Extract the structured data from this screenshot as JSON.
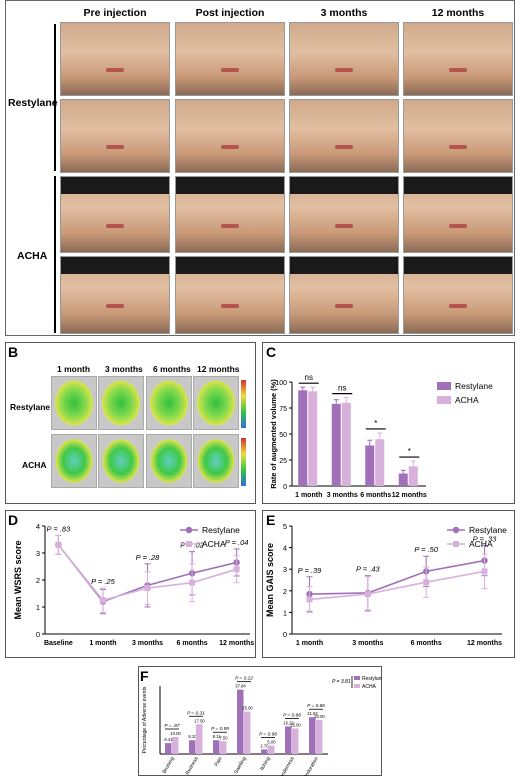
{
  "panelA": {
    "letter": "A",
    "columns": [
      "Pre injection",
      "Post injection",
      "3 months",
      "12 months"
    ],
    "rows": [
      "Restylane",
      "ACHA"
    ]
  },
  "panelB": {
    "letter": "B",
    "columns": [
      "1 month",
      "3 months",
      "6 months",
      "12 months"
    ],
    "rows": [
      "Restylane",
      "ACHA"
    ]
  },
  "panelC": {
    "letter": "C",
    "ylabel": "Rate of augmented volume (%)",
    "sig": [
      "ns",
      "ns",
      "*",
      "*"
    ]
  },
  "panelD": {
    "letter": "D",
    "ylabel": "Mean WSRS score"
  },
  "panelE": {
    "letter": "E",
    "ylabel": "Mean GAIS score"
  },
  "panelF": {
    "letter": "F",
    "ylabel": "Percentage of Adverse events",
    "extra_p": "P = 3.81"
  },
  "colors": {
    "restylane": "#a070b8",
    "acha": "#d8b0dc"
  },
  "chart_data": [
    {
      "id": "C",
      "type": "bar",
      "categories": [
        "1 month",
        "3 months",
        "6 months",
        "12 months"
      ],
      "series": [
        {
          "name": "Restylane",
          "values": [
            92,
            79,
            39,
            12
          ],
          "errors": [
            3,
            4,
            5,
            3
          ]
        },
        {
          "name": "ACHA",
          "values": [
            91,
            80,
            45,
            19
          ],
          "errors": [
            4,
            5,
            6,
            5
          ]
        }
      ],
      "ylim": [
        0,
        100
      ],
      "yticks": [
        0,
        25,
        50,
        75,
        100
      ],
      "ylabel": "Rate of augmented volume (%)",
      "legend": "right"
    },
    {
      "id": "D",
      "type": "line",
      "categories": [
        "Baseline",
        "1 month",
        "3 months",
        "6 months",
        "12 months"
      ],
      "series": [
        {
          "name": "Restylane",
          "values": [
            3.3,
            1.2,
            1.8,
            2.25,
            2.65
          ],
          "errors": [
            0.35,
            0.45,
            0.8,
            0.8,
            0.5
          ]
        },
        {
          "name": "ACHA",
          "values": [
            3.3,
            1.25,
            1.7,
            1.9,
            2.4
          ],
          "errors": [
            0.35,
            0.45,
            0.6,
            0.7,
            0.5
          ]
        }
      ],
      "pvalues": [
        "P = .83",
        "P = .25",
        "P = .28",
        "P = .02",
        "P = .04"
      ],
      "ylim": [
        0,
        4
      ],
      "yticks": [
        0,
        1,
        2,
        3,
        4
      ],
      "ylabel": "Mean WSRS score",
      "legend": "top-right"
    },
    {
      "id": "E",
      "type": "line",
      "categories": [
        "1 month",
        "3 months",
        "6 months",
        "12 months"
      ],
      "series": [
        {
          "name": "Restylane",
          "values": [
            1.85,
            1.9,
            2.9,
            3.4
          ],
          "errors": [
            0.8,
            0.8,
            0.7,
            0.7
          ]
        },
        {
          "name": "ACHA",
          "values": [
            1.6,
            1.85,
            2.4,
            2.9
          ],
          "errors": [
            0.6,
            0.8,
            0.7,
            0.8
          ]
        }
      ],
      "pvalues": [
        "P = .39",
        "P = .43",
        "P = .50",
        "P = .33"
      ],
      "ylim": [
        0,
        5
      ],
      "yticks": [
        0,
        1,
        2,
        3,
        4,
        5
      ],
      "ylabel": "Mean GAIS score",
      "legend": "top-right"
    },
    {
      "id": "F",
      "type": "bar",
      "categories": [
        "Bruising",
        "Redness",
        "Pain",
        "Swelling",
        "Itching",
        "Tenderness",
        "Induration"
      ],
      "series": [
        {
          "name": "Restylane",
          "values": [
            6.41,
            8.1,
            8.11,
            37.84,
            2.7,
            16.22,
            21.62
          ]
        },
        {
          "name": "ACHA",
          "values": [
            10.0,
            17.5,
            7.5,
            25.0,
            5.0,
            15.0,
            20.0
          ]
        }
      ],
      "value_labels": [
        [
          "6.41",
          "10.00"
        ],
        [
          "8.10",
          "17.50"
        ],
        [
          "8.11",
          "7.50"
        ],
        [
          "37.84",
          "25.00"
        ],
        [
          "2.70",
          "5.00"
        ],
        [
          "16.22",
          "15.00"
        ],
        [
          "21.62",
          "20.00"
        ]
      ],
      "pvalues": [
        "P = .87",
        "P = 0.31",
        "P = 0.99",
        "P = 0.22",
        "P = 0.98",
        "P = 0.88",
        "P = 0.86"
      ],
      "ylim": [
        0,
        40
      ],
      "ylabel": "Percentage of Adverse events",
      "legend": "top-right"
    }
  ]
}
